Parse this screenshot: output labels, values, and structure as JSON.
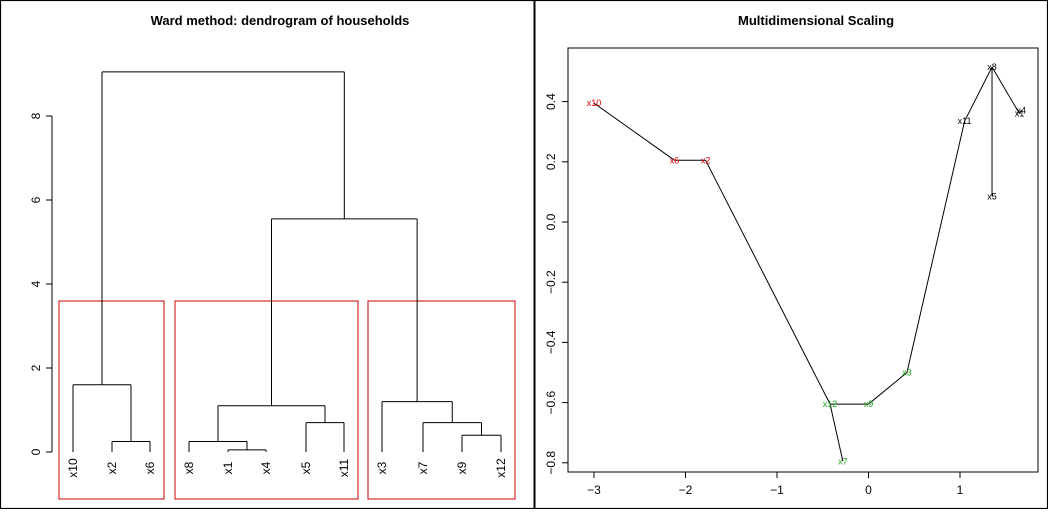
{
  "chart_data": [
    {
      "type": "dendrogram",
      "title": "Ward method: dendrogram of households",
      "ylim": [
        0,
        9
      ],
      "yticks": [
        "0",
        "2",
        "4",
        "6",
        "8"
      ],
      "leaves": [
        "x10",
        "x2",
        "x6",
        "x8",
        "x1",
        "x4",
        "x5",
        "x11",
        "x3",
        "x7",
        "x9",
        "x12"
      ],
      "merges": [
        {
          "a": "x1",
          "b": "x4",
          "height": 0.05
        },
        {
          "a": "x8",
          "b": "x1+x4",
          "height": 0.25
        },
        {
          "a": "x2",
          "b": "x6",
          "height": 0.25
        },
        {
          "a": "x9",
          "b": "x12",
          "height": 0.4
        },
        {
          "a": "x7",
          "b": "x9+x12",
          "height": 0.7
        },
        {
          "a": "x5",
          "b": "x11",
          "height": 0.7
        },
        {
          "a": "x8+x1+x4",
          "b": "x5+x11",
          "height": 1.1
        },
        {
          "a": "x3",
          "b": "x7+x9+x12",
          "height": 1.2
        },
        {
          "a": "x10",
          "b": "x2+x6",
          "height": 1.6
        },
        {
          "a": "cluster2",
          "b": "cluster3",
          "height": 5.55
        },
        {
          "a": "cluster1",
          "b": "cluster2+cluster3",
          "height": 9.05
        }
      ],
      "cluster_boxes": [
        {
          "leaves": [
            "x10",
            "x2",
            "x6"
          ],
          "color": "#cc0000"
        },
        {
          "leaves": [
            "x8",
            "x1",
            "x4",
            "x5",
            "x11"
          ],
          "color": "#cc0000"
        },
        {
          "leaves": [
            "x3",
            "x7",
            "x9",
            "x12"
          ],
          "color": "#cc0000"
        }
      ]
    },
    {
      "type": "scatter",
      "title": "Multidimensional Scaling",
      "xlim": [
        -3.15,
        1.95
      ],
      "ylim": [
        -0.83,
        0.57
      ],
      "xticks": [
        "−3",
        "−2",
        "−1",
        "0",
        "1"
      ],
      "yticks": [
        "−0.8",
        "−0.6",
        "−0.4",
        "−0.2",
        "0.0",
        "0.2",
        "0.4"
      ],
      "points": [
        {
          "label": "x10",
          "x": -3.0,
          "y": 0.395,
          "color": "#dd0000"
        },
        {
          "label": "x6",
          "x": -2.12,
          "y": 0.205,
          "color": "#dd0000"
        },
        {
          "label": "x2",
          "x": -1.78,
          "y": 0.205,
          "color": "#dd0000"
        },
        {
          "label": "x12",
          "x": -0.42,
          "y": -0.605,
          "color": "#22aa22"
        },
        {
          "label": "x7",
          "x": -0.28,
          "y": -0.795,
          "color": "#22aa22"
        },
        {
          "label": "x9",
          "x": 0.0,
          "y": -0.605,
          "color": "#22aa22"
        },
        {
          "label": "x3",
          "x": 0.42,
          "y": -0.5,
          "color": "#22aa22"
        },
        {
          "label": "x11",
          "x": 1.05,
          "y": 0.335,
          "color": "#000000"
        },
        {
          "label": "x8",
          "x": 1.35,
          "y": 0.515,
          "color": "#000000"
        },
        {
          "label": "x5",
          "x": 1.35,
          "y": 0.085,
          "color": "#000000"
        },
        {
          "label": "x1",
          "x": 1.65,
          "y": 0.36,
          "color": "#000000"
        },
        {
          "label": "x4",
          "x": 1.67,
          "y": 0.37,
          "color": "#000000"
        }
      ],
      "edges": [
        [
          "x10",
          "x6"
        ],
        [
          "x6",
          "x2"
        ],
        [
          "x2",
          "x12"
        ],
        [
          "x12",
          "x7"
        ],
        [
          "x12",
          "x9"
        ],
        [
          "x9",
          "x3"
        ],
        [
          "x3",
          "x11"
        ],
        [
          "x11",
          "x8"
        ],
        [
          "x8",
          "x5"
        ],
        [
          "x8",
          "x1"
        ],
        [
          "x1",
          "x4"
        ]
      ]
    }
  ]
}
